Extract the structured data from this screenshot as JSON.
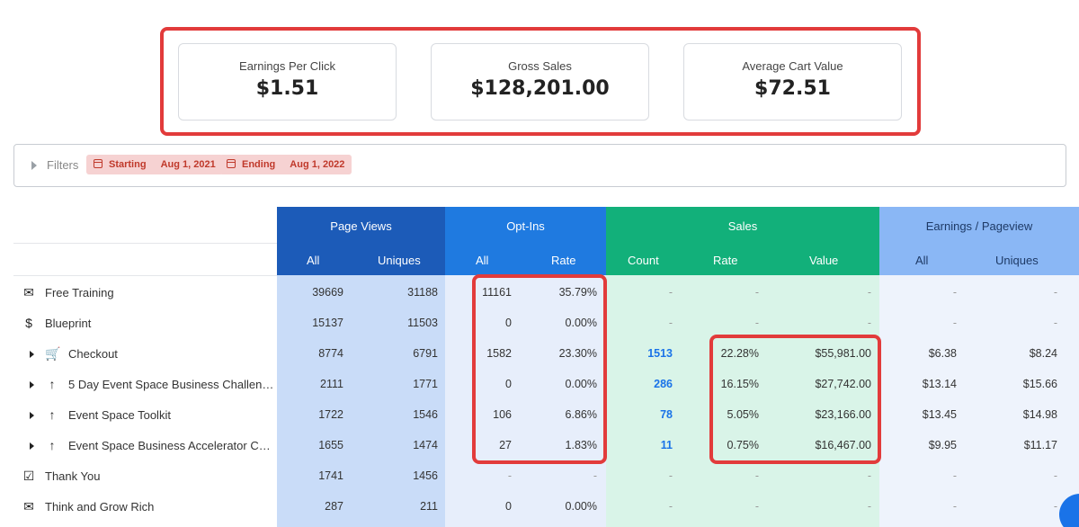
{
  "kpis": [
    {
      "label": "Earnings Per Click",
      "value": "$1.51"
    },
    {
      "label": "Gross Sales",
      "value": "$128,201.00"
    },
    {
      "label": "Average Cart Value",
      "value": "$72.51"
    }
  ],
  "filters": {
    "label": "Filters",
    "starting": {
      "key": "Starting",
      "date": "Aug 1, 2021"
    },
    "ending": {
      "key": "Ending",
      "date": "Aug 1, 2022"
    }
  },
  "groups": {
    "page_views": "Page Views",
    "opt_ins": "Opt-Ins",
    "sales": "Sales",
    "earnings": "Earnings / Pageview"
  },
  "subheaders": {
    "pv_all": "All",
    "pv_uniques": "Uniques",
    "opt_all": "All",
    "opt_rate": "Rate",
    "sales_count": "Count",
    "sales_rate": "Rate",
    "sales_value": "Value",
    "earn_all": "All",
    "earn_uniques": "Uniques"
  },
  "colors": {
    "page_views_header": "#1c5bb8",
    "opt_ins_header": "#1f7ae0",
    "sales_header": "#12b07a",
    "earnings_header": "#8ab7f5",
    "highlight": "#e23b3b"
  },
  "rows": [
    {
      "name": "Free Training",
      "icon": "envelope-icon",
      "expandable": false,
      "pv_all": "39669",
      "pv_uniques": "31188",
      "opt_all": "11161",
      "opt_rate": "35.79%",
      "sales_count": "-",
      "sales_rate": "-",
      "sales_value": "-",
      "earn_all": "-",
      "earn_uniques": "-"
    },
    {
      "name": "Blueprint",
      "icon": "dollar-icon",
      "expandable": false,
      "pv_all": "15137",
      "pv_uniques": "11503",
      "opt_all": "0",
      "opt_rate": "0.00%",
      "sales_count": "-",
      "sales_rate": "-",
      "sales_value": "-",
      "earn_all": "-",
      "earn_uniques": "-"
    },
    {
      "name": "Checkout",
      "icon": "cart-icon",
      "expandable": true,
      "pv_all": "8774",
      "pv_uniques": "6791",
      "opt_all": "1582",
      "opt_rate": "23.30%",
      "sales_count": "1513",
      "sales_rate": "22.28%",
      "sales_value": "$55,981.00",
      "earn_all": "$6.38",
      "earn_uniques": "$8.24"
    },
    {
      "name": "5 Day Event Space Business Challen…",
      "icon": "arrow-up-icon",
      "expandable": true,
      "pv_all": "2111",
      "pv_uniques": "1771",
      "opt_all": "0",
      "opt_rate": "0.00%",
      "sales_count": "286",
      "sales_rate": "16.15%",
      "sales_value": "$27,742.00",
      "earn_all": "$13.14",
      "earn_uniques": "$15.66"
    },
    {
      "name": "Event Space Toolkit",
      "icon": "arrow-up-icon",
      "expandable": true,
      "pv_all": "1722",
      "pv_uniques": "1546",
      "opt_all": "106",
      "opt_rate": "6.86%",
      "sales_count": "78",
      "sales_rate": "5.05%",
      "sales_value": "$23,166.00",
      "earn_all": "$13.45",
      "earn_uniques": "$14.98"
    },
    {
      "name": "Event Space Business Accelerator C…",
      "icon": "arrow-up-icon",
      "expandable": true,
      "pv_all": "1655",
      "pv_uniques": "1474",
      "opt_all": "27",
      "opt_rate": "1.83%",
      "sales_count": "11",
      "sales_rate": "0.75%",
      "sales_value": "$16,467.00",
      "earn_all": "$9.95",
      "earn_uniques": "$11.17"
    },
    {
      "name": "Thank You",
      "icon": "checkbox-icon",
      "expandable": false,
      "pv_all": "1741",
      "pv_uniques": "1456",
      "opt_all": "-",
      "opt_rate": "-",
      "sales_count": "-",
      "sales_rate": "-",
      "sales_value": "-",
      "earn_all": "-",
      "earn_uniques": "-"
    },
    {
      "name": "Think and Grow Rich",
      "icon": "envelope-icon",
      "expandable": false,
      "pv_all": "287",
      "pv_uniques": "211",
      "opt_all": "0",
      "opt_rate": "0.00%",
      "sales_count": "-",
      "sales_rate": "-",
      "sales_value": "-",
      "earn_all": "-",
      "earn_uniques": "-"
    }
  ]
}
